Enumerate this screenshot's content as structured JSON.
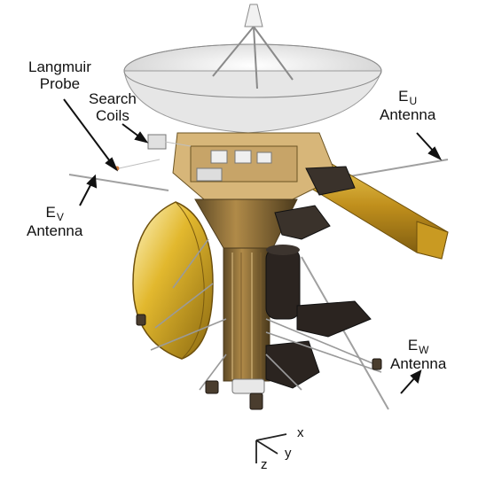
{
  "labels": {
    "langmuir_line1": "Langmuir",
    "langmuir_line2": "Probe",
    "search_line1": "Search",
    "search_line2": "Coils",
    "eu_letter": "E",
    "eu_sub": "U",
    "eu_line2": "Antenna",
    "ev_letter": "E",
    "ev_sub": "V",
    "ev_line2": "Antenna",
    "ew_letter": "E",
    "ew_sub": "W",
    "ew_line2": "Antenna"
  },
  "axes": {
    "x": "x",
    "y": "y",
    "z": "z"
  },
  "colors": {
    "gold": "#c9a12a",
    "gold_dark": "#8a6a14",
    "dish": "#eeeeee",
    "body_dark": "#2b2420",
    "antenna": "#9a9a9a",
    "arrow": "#111111"
  }
}
